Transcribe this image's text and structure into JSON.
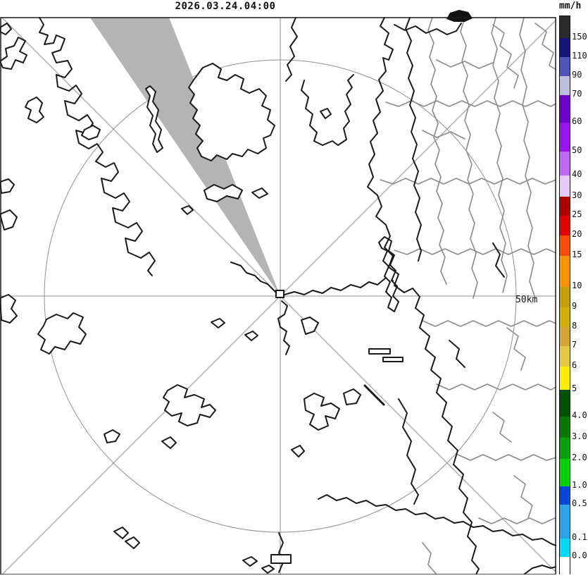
{
  "title": {
    "timestamp": "2026.03.24.04:00"
  },
  "legend": {
    "unit_label": "mm/h",
    "segments": [
      {
        "color": "#2b2b2b",
        "from": 22,
        "to": 53,
        "label": "150"
      },
      {
        "color": "#15157d",
        "from": 53,
        "to": 80,
        "label": "110"
      },
      {
        "color": "#5252bc",
        "from": 80,
        "to": 107,
        "label": "90"
      },
      {
        "color": "#bdbde0",
        "from": 107,
        "to": 134,
        "label": "70"
      },
      {
        "color": "#6c00cd",
        "from": 134,
        "to": 173,
        "label": "60"
      },
      {
        "color": "#9a14f0",
        "from": 173,
        "to": 214,
        "label": "50"
      },
      {
        "color": "#bf68f7",
        "from": 214,
        "to": 248,
        "label": "40"
      },
      {
        "color": "#e6cbfb",
        "from": 248,
        "to": 278,
        "label": "30"
      },
      {
        "color": "#af0000",
        "from": 278,
        "to": 305,
        "label": "25"
      },
      {
        "color": "#e30000",
        "from": 305,
        "to": 333,
        "label": "20"
      },
      {
        "color": "#ff4a00",
        "from": 333,
        "to": 362,
        "label": "15"
      },
      {
        "color": "#ff9300",
        "from": 362,
        "to": 406,
        "label": "10"
      },
      {
        "color": "#c79f05",
        "from": 406,
        "to": 435,
        "label": "9"
      },
      {
        "color": "#d3ad00",
        "from": 435,
        "to": 463,
        "label": "8"
      },
      {
        "color": "#d8a532",
        "from": 463,
        "to": 490,
        "label": "7"
      },
      {
        "color": "#e7c93e",
        "from": 490,
        "to": 519,
        "label": "6"
      },
      {
        "color": "#fbee00",
        "from": 519,
        "to": 552,
        "label": "5"
      },
      {
        "color": "#005200",
        "from": 552,
        "to": 590,
        "label": "4.0"
      },
      {
        "color": "#007a00",
        "from": 590,
        "to": 620,
        "label": "3.0"
      },
      {
        "color": "#00a303",
        "from": 620,
        "to": 650,
        "label": "2.0"
      },
      {
        "color": "#00d200",
        "from": 650,
        "to": 689,
        "label": "1.0"
      },
      {
        "color": "#0047de",
        "from": 689,
        "to": 715,
        "label": "0.5"
      },
      {
        "color": "#2aa3ea",
        "from": 715,
        "to": 763,
        "label": "0.1"
      },
      {
        "color": "#00dafa",
        "from": 763,
        "to": 789,
        "label": "0.0"
      },
      {
        "color": "#ffffff",
        "from": 789,
        "to": 815,
        "label": ""
      }
    ]
  },
  "map": {
    "range_label": "50km",
    "wedge_color": "#b4b4b4",
    "coast_color": "#1a1a1a",
    "boundary_color": "#8a8a8a",
    "grid_color": "#909090"
  }
}
